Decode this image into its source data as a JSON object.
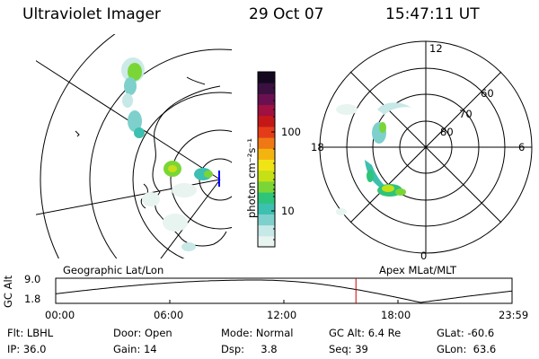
{
  "header": {
    "instrument": "Ultraviolet Imager",
    "date": "29 Oct 07",
    "time": "15:47:11 UT"
  },
  "colorbar": {
    "unit_label": "photon cm⁻²s⁻¹",
    "tick_labels": [
      "100",
      "10"
    ],
    "colors": [
      "#e8f4f0",
      "#c6e8e6",
      "#7ed0cc",
      "#3cc0b0",
      "#2ec47a",
      "#7ad636",
      "#c6e016",
      "#f0e416",
      "#f4b410",
      "#f07814",
      "#e43c18",
      "#c41818",
      "#a01040",
      "#6a1050",
      "#3a1040",
      "#140820"
    ]
  },
  "panels": {
    "left_label": "Geographic Lat/Lon",
    "right_label": "Apex MLat/MLT"
  },
  "polar": {
    "lat_labels": [
      "60",
      "70",
      "80"
    ],
    "mlt_labels": [
      "12",
      "18",
      "6",
      "0"
    ]
  },
  "orbit": {
    "ylabel": "GC Alt",
    "y_ticks": [
      "9.0",
      "1.8"
    ],
    "x_ticks": [
      "00:00",
      "06:00",
      "12:00",
      "18:00",
      "23:59"
    ],
    "marker_time_hours": 15.79
  },
  "status": {
    "filter": "Flt: LBHL",
    "ip": "IP: 36.0",
    "door": "Door: Open",
    "gain": "Gain: 14",
    "mode": "Mode: Normal",
    "dsp": "Dsp:     3.8",
    "gc_alt": "GC Alt: 6.4 Re",
    "seq": "Seq: 39",
    "glat": "GLat: -60.6",
    "glon": "GLon:  63.6"
  }
}
